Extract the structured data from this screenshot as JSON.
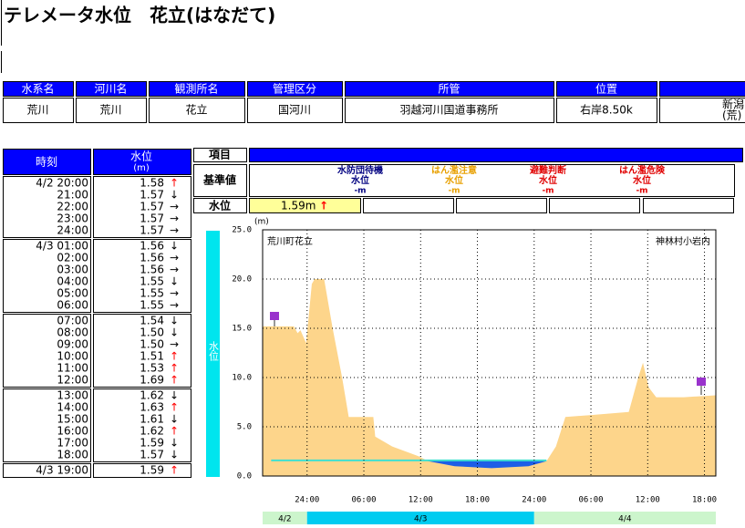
{
  "title": "テレメータ水位　花立(はなだて)",
  "info": {
    "headers": [
      "水系名",
      "河川名",
      "観測所名",
      "管理区分",
      "所管",
      "位置"
    ],
    "row": [
      "荒川",
      "荒川",
      "花立",
      "国河川",
      "羽越河川国道事務所",
      "右岸8.50k"
    ],
    "extra": [
      "新潟",
      "(荒)"
    ]
  },
  "history": {
    "headers": {
      "time": "時刻",
      "level": "水位",
      "unit": "(m)"
    },
    "trend_color": {
      "↑": "#ff0000",
      "↓": "#000000",
      "→": "#000000"
    },
    "groups": [
      [
        {
          "time": "4/2 20:00",
          "level": "1.58",
          "trend": "↑"
        },
        {
          "time": "21:00",
          "level": "1.57",
          "trend": "↓"
        },
        {
          "time": "22:00",
          "level": "1.57",
          "trend": "→"
        },
        {
          "time": "23:00",
          "level": "1.57",
          "trend": "→"
        },
        {
          "time": "24:00",
          "level": "1.57",
          "trend": "→"
        }
      ],
      [
        {
          "time": "4/3 01:00",
          "level": "1.56",
          "trend": "↓"
        },
        {
          "time": "02:00",
          "level": "1.56",
          "trend": "→"
        },
        {
          "time": "03:00",
          "level": "1.56",
          "trend": "→"
        },
        {
          "time": "04:00",
          "level": "1.55",
          "trend": "↓"
        },
        {
          "time": "05:00",
          "level": "1.55",
          "trend": "→"
        },
        {
          "time": "06:00",
          "level": "1.55",
          "trend": "→"
        }
      ],
      [
        {
          "time": "07:00",
          "level": "1.54",
          "trend": "↓"
        },
        {
          "time": "08:00",
          "level": "1.50",
          "trend": "↓"
        },
        {
          "time": "09:00",
          "level": "1.50",
          "trend": "→"
        },
        {
          "time": "10:00",
          "level": "1.51",
          "trend": "↑"
        },
        {
          "time": "11:00",
          "level": "1.53",
          "trend": "↑"
        },
        {
          "time": "12:00",
          "level": "1.69",
          "trend": "↑"
        }
      ],
      [
        {
          "time": "13:00",
          "level": "1.62",
          "trend": "↓"
        },
        {
          "time": "14:00",
          "level": "1.63",
          "trend": "↑"
        },
        {
          "time": "15:00",
          "level": "1.61",
          "trend": "↓"
        },
        {
          "time": "16:00",
          "level": "1.62",
          "trend": "↑"
        },
        {
          "time": "17:00",
          "level": "1.59",
          "trend": "↓"
        },
        {
          "time": "18:00",
          "level": "1.57",
          "trend": "↓"
        }
      ],
      [
        {
          "time": "4/3 19:00",
          "level": "1.59",
          "trend": "↑"
        }
      ]
    ]
  },
  "current": {
    "item": "項目",
    "standard": "基準値",
    "label": "水位",
    "value": "1.59m",
    "trend": "↑",
    "levels": [
      {
        "name": [
          "水防団待機",
          "水位"
        ],
        "value": "-m",
        "color": "#000080"
      },
      {
        "name": [
          "はん濫注意",
          "水位"
        ],
        "value": "-m",
        "color": "#e8a000"
      },
      {
        "name": [
          "避難判断",
          "水位"
        ],
        "value": "-m",
        "color": "#e00000"
      },
      {
        "name": [
          "はん濫危険",
          "水位"
        ],
        "value": "-m",
        "color": "#e00000"
      }
    ]
  },
  "chart_data": {
    "type": "area",
    "ylabel": "水位",
    "unit": "(m)",
    "annotations": [
      "荒川町花立",
      "神林村小岩内"
    ],
    "dates": [
      "4/2",
      "4/3",
      "4/4"
    ],
    "xlim": [
      -4.7,
      43.2
    ],
    "xticks": [
      {
        "value": 0,
        "label": "24:00"
      },
      {
        "value": 6,
        "label": "06:00"
      },
      {
        "value": 12,
        "label": "12:00"
      },
      {
        "value": 18,
        "label": "18:00"
      },
      {
        "value": 24,
        "label": "24:00"
      },
      {
        "value": 30,
        "label": "06:00"
      },
      {
        "value": 36,
        "label": "12:00"
      },
      {
        "value": 42,
        "label": "18:00"
      }
    ],
    "ylim": [
      0,
      25
    ],
    "yticks": [
      {
        "value": 0,
        "label": "0.0"
      },
      {
        "value": 5,
        "label": "5.0"
      },
      {
        "value": 10,
        "label": "10.0"
      },
      {
        "value": 15,
        "label": "15.0"
      },
      {
        "value": 20,
        "label": "20.0"
      },
      {
        "value": 25,
        "label": "25.0"
      }
    ],
    "grid": true,
    "series": [
      {
        "color": "#fdd58b",
        "x": [
          -4.7,
          -1.4,
          -1.0,
          -0.7,
          -0.1,
          0.5,
          0.8,
          1.8,
          2.7,
          3.7,
          4.4,
          7.0,
          7.2,
          9.0,
          10.4,
          11.8,
          12.8,
          15.6,
          19.5,
          23.4,
          25.3,
          26.3,
          27.3,
          30.2,
          34.0,
          35.0,
          35.5,
          36.1,
          36.9,
          39.8,
          43.2
        ],
        "values": [
          15.2,
          15.2,
          14.5,
          14.8,
          13.5,
          19.5,
          20.0,
          20.0,
          15.0,
          10.0,
          6.0,
          6.0,
          4.0,
          3.0,
          2.5,
          2.0,
          1.5,
          1.0,
          0.8,
          1.0,
          1.5,
          3.0,
          6.0,
          6.2,
          6.5,
          10.0,
          11.5,
          9.0,
          8.0,
          8.0,
          8.2
        ]
      },
      {
        "color": "#1e5ee6",
        "line_color": "#40e0d0",
        "x": [
          -3.8,
          25.3
        ],
        "values": [
          1.59,
          1.59
        ]
      }
    ]
  }
}
